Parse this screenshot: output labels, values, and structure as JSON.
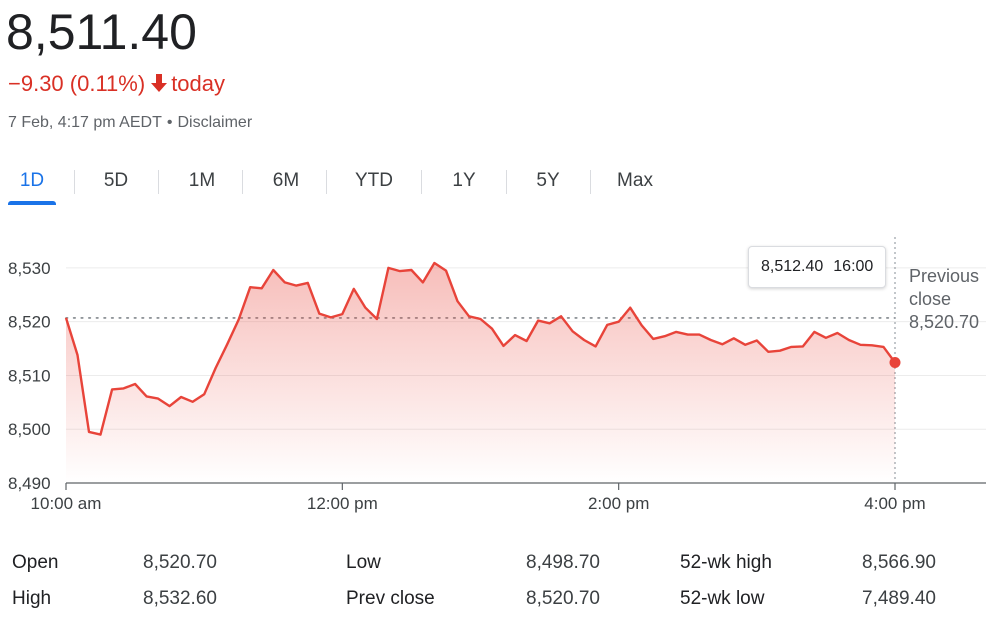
{
  "price": "8,511.40",
  "change": {
    "text": "−9.30 (0.11%)",
    "suffix": "today",
    "color": "#d93025",
    "arrow_icon": "arrow-down-icon"
  },
  "meta": {
    "timestamp": "7 Feb, 4:17 pm AEDT",
    "separator": "•",
    "disclaimer": "Disclaimer"
  },
  "tabs": [
    {
      "label": "1D",
      "active": true
    },
    {
      "label": "5D",
      "active": false
    },
    {
      "label": "1M",
      "active": false
    },
    {
      "label": "6M",
      "active": false
    },
    {
      "label": "YTD",
      "active": false
    },
    {
      "label": "1Y",
      "active": false
    },
    {
      "label": "5Y",
      "active": false
    },
    {
      "label": "Max",
      "active": false
    }
  ],
  "tooltip": {
    "value": "8,512.40",
    "time": "16:00"
  },
  "chart_data": {
    "type": "line",
    "x_unit": "minutes after 10:00 am",
    "y": [
      8520.7,
      8513.8,
      8499.5,
      8499.0,
      8507.4,
      8507.6,
      8508.4,
      8506.1,
      8505.7,
      8504.3,
      8506.0,
      8505.1,
      8506.5,
      8511.4,
      8515.8,
      8520.4,
      8526.4,
      8526.2,
      8529.6,
      8527.3,
      8526.7,
      8527.2,
      8521.5,
      8520.8,
      8521.4,
      8526.1,
      8522.6,
      8520.5,
      8530.0,
      8529.4,
      8529.6,
      8527.3,
      8530.9,
      8529.5,
      8523.8,
      8521.0,
      8520.5,
      8518.7,
      8515.5,
      8517.5,
      8516.4,
      8520.2,
      8519.7,
      8521.0,
      8518.2,
      8516.6,
      8515.4,
      8519.4,
      8520.0,
      8522.6,
      8519.3,
      8516.8,
      8517.3,
      8518.1,
      8517.6,
      8517.6,
      8516.6,
      8515.8,
      8516.9,
      8515.7,
      8516.5,
      8514.4,
      8514.6,
      8515.3,
      8515.4,
      8518.1,
      8517.0,
      8517.9,
      8516.6,
      8515.7,
      8515.6,
      8515.3,
      8512.4
    ],
    "x_range": [
      0,
      360
    ],
    "ylim": [
      8490,
      8535
    ],
    "y_ticks": [
      {
        "value": 8490,
        "label": "8,490"
      },
      {
        "value": 8500,
        "label": "8,500"
      },
      {
        "value": 8510,
        "label": "8,510"
      },
      {
        "value": 8520,
        "label": "8,520"
      },
      {
        "value": 8530,
        "label": "8,530"
      }
    ],
    "x_ticks": [
      {
        "value": 0,
        "label": "10:00 am"
      },
      {
        "value": 120,
        "label": "12:00 pm"
      },
      {
        "value": 240,
        "label": "2:00 pm"
      },
      {
        "value": 360,
        "label": "4:00 pm"
      }
    ],
    "previous_close": {
      "value": 8520.7,
      "label_lines": [
        "Previous",
        "close",
        "8,520.70"
      ]
    },
    "line_color": "#e8443a",
    "grid": true
  },
  "stats": [
    {
      "label": "Open",
      "value": "8,520.70"
    },
    {
      "label": "High",
      "value": "8,532.60"
    },
    {
      "label": "Low",
      "value": "8,498.70"
    },
    {
      "label": "Prev close",
      "value": "8,520.70"
    },
    {
      "label": "52-wk high",
      "value": "8,566.90"
    },
    {
      "label": "52-wk low",
      "value": "7,489.40"
    }
  ]
}
